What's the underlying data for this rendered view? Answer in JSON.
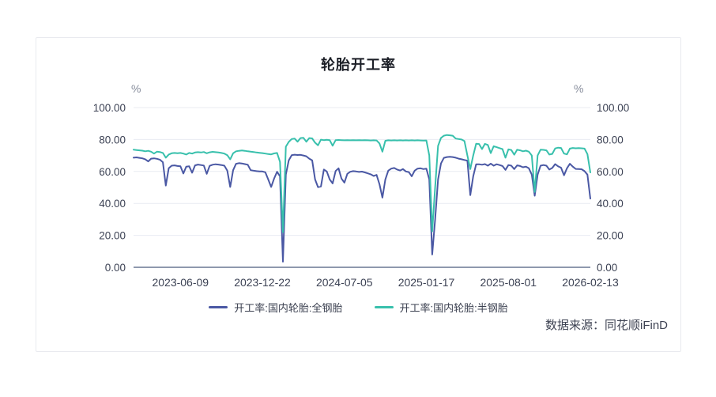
{
  "chart": {
    "title": "轮胎开工率",
    "unit_label_left": "%",
    "unit_label_right": "%",
    "source_note": "数据来源：同花顺iFinD",
    "legend": [
      {
        "label": "开工率:国内轮胎:全钢胎",
        "color": "#4a58a4"
      },
      {
        "label": "开工率:国内轮胎:半钢胎",
        "color": "#38c0ac"
      }
    ]
  },
  "chart_data": {
    "type": "line",
    "title": "轮胎开工率",
    "xlabel": "",
    "ylabel": "%",
    "ylim": [
      0,
      100
    ],
    "grid": true,
    "legend_position": "bottom",
    "y_ticks": [
      "0.00",
      "20.00",
      "40.00",
      "60.00",
      "80.00",
      "100.00"
    ],
    "x_tick_labels": [
      "2023-06-09",
      "2023-12-22",
      "2024-07-05",
      "2025-01-17",
      "2025-08-01",
      "2026-02-13"
    ],
    "x_tick_indices": [
      16,
      44,
      72,
      100,
      128,
      156
    ],
    "x_start_date": "2023-02-17",
    "x_step_days": 7,
    "colors": {
      "full_steel": "#4a58a4",
      "semi_steel": "#38c0ac",
      "gridline": "#e9ebf2",
      "axis_line": "#8f99ae"
    },
    "series": [
      {
        "name": "开工率:国内轮胎:全钢胎",
        "color": "#4a58a4",
        "values": [
          68.6,
          68.8,
          68.5,
          68.2,
          67.6,
          66.3,
          68.0,
          68.2,
          67.9,
          67.4,
          65.8,
          51.2,
          62.0,
          63.6,
          63.8,
          63.4,
          63.2,
          58.7,
          63.0,
          63.2,
          59.2,
          63.8,
          64.3,
          64.0,
          63.7,
          58.5,
          63.5,
          64.2,
          64.5,
          64.3,
          64.0,
          63.6,
          60.5,
          50.3,
          60.8,
          64.8,
          65.2,
          65.0,
          64.6,
          64.2,
          60.8,
          60.5,
          60.2,
          60.0,
          60.0,
          59.5,
          55.0,
          50.3,
          55.5,
          59.8,
          57.0,
          3.5,
          58.0,
          67.0,
          70.2,
          70.5,
          70.3,
          70.4,
          70.0,
          69.5,
          68.0,
          67.0,
          55.0,
          50.2,
          50.6,
          61.2,
          60.0,
          55.0,
          52.5,
          60.3,
          62.0,
          55.5,
          53.0,
          58.5,
          59.8,
          60.2,
          60.0,
          59.7,
          59.9,
          59.4,
          58.8,
          58.2,
          57.2,
          57.8,
          52.0,
          43.6,
          55.0,
          60.5,
          61.8,
          62.2,
          61.2,
          60.6,
          61.5,
          60.0,
          59.6,
          57.0,
          60.5,
          61.8,
          62.0,
          61.5,
          61.8,
          55.0,
          8.0,
          30.0,
          55.0,
          65.0,
          68.5,
          69.0,
          69.2,
          69.0,
          68.6,
          68.0,
          67.6,
          67.2,
          66.8,
          45.2,
          57.0,
          64.5,
          64.5,
          64.2,
          64.6,
          63.6,
          64.9,
          63.6,
          64.5,
          64.0,
          63.4,
          61.0,
          64.0,
          63.6,
          61.5,
          63.8,
          63.4,
          62.6,
          63.0,
          62.0,
          58.0,
          44.8,
          58.0,
          63.6,
          64.0,
          63.6,
          61.2,
          62.2,
          64.6,
          63.2,
          62.4,
          57.6,
          62.0,
          64.8,
          63.0,
          61.6,
          61.5,
          61.4,
          60.2,
          58.0,
          43.0
        ]
      },
      {
        "name": "开工率:国内轮胎:半钢胎",
        "color": "#38c0ac",
        "values": [
          73.6,
          73.4,
          73.2,
          73.0,
          72.6,
          72.9,
          72.4,
          71.2,
          72.4,
          72.2,
          71.6,
          68.6,
          70.6,
          71.4,
          71.6,
          71.4,
          71.6,
          71.2,
          70.6,
          71.6,
          71.2,
          71.9,
          72.1,
          71.9,
          72.2,
          71.4,
          72.0,
          72.3,
          72.1,
          71.9,
          71.6,
          71.2,
          70.2,
          67.6,
          71.4,
          72.6,
          72.9,
          73.1,
          72.9,
          72.6,
          72.4,
          72.2,
          71.9,
          71.7,
          71.5,
          71.2,
          70.9,
          70.7,
          71.3,
          71.6,
          66.0,
          22.0,
          75.5,
          78.5,
          80.3,
          80.6,
          78.6,
          80.9,
          81.1,
          78.6,
          80.9,
          80.7,
          78.0,
          76.4,
          79.9,
          79.6,
          79.8,
          79.6,
          76.1,
          79.6,
          79.7,
          79.6,
          79.5,
          79.6,
          79.5,
          79.6,
          79.5,
          79.6,
          79.5,
          79.6,
          79.5,
          79.4,
          79.5,
          79.4,
          77.5,
          72.4,
          79.2,
          79.5,
          79.4,
          79.5,
          79.4,
          79.5,
          79.4,
          79.5,
          79.4,
          79.5,
          79.4,
          79.5,
          79.4,
          79.3,
          79.4,
          70.0,
          22.5,
          50.0,
          76.0,
          81.0,
          82.4,
          82.8,
          82.6,
          82.4,
          80.6,
          80.3,
          80.0,
          79.0,
          70.0,
          61.5,
          70.0,
          77.4,
          77.2,
          74.0,
          77.3,
          76.6,
          71.5,
          75.8,
          75.2,
          74.6,
          74.0,
          68.6,
          73.8,
          73.4,
          70.5,
          73.6,
          73.2,
          72.6,
          73.0,
          72.4,
          70.0,
          47.2,
          70.0,
          73.6,
          73.5,
          73.2,
          70.6,
          71.0,
          74.4,
          74.9,
          74.7,
          71.2,
          70.7,
          74.3,
          74.7,
          74.5,
          74.6,
          74.5,
          74.3,
          70.9,
          59.4
        ]
      }
    ]
  }
}
